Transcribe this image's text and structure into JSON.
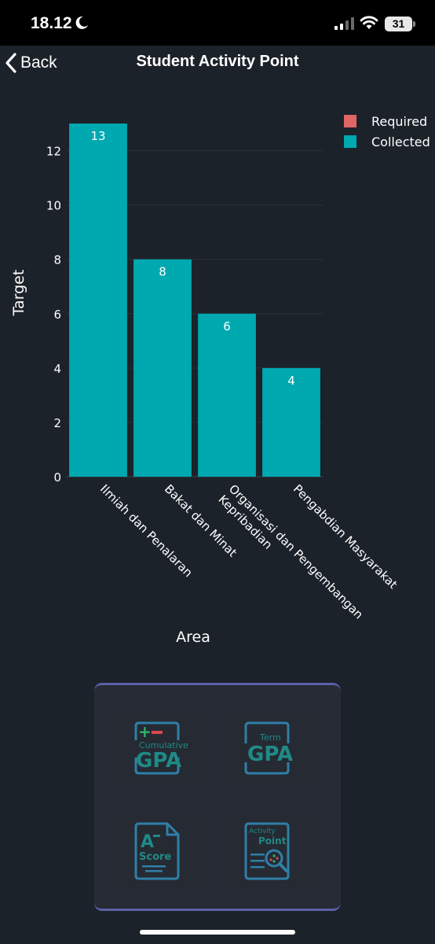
{
  "status_bar": {
    "time": "18.12",
    "battery": "31",
    "icons": [
      "moon-icon",
      "signal-icon",
      "wifi-icon",
      "battery-icon"
    ]
  },
  "nav": {
    "back_label": "Back",
    "title": "Student Activity Point"
  },
  "chart_data": {
    "type": "bar",
    "categories": [
      "Ilmiah dan Penalaran",
      "Bakat dan Minat",
      "Organisasi dan Pengembangan Kepribadian",
      "Pengabdian Masyarakat"
    ],
    "category_label_lines": [
      [
        "Ilmiah dan Penalaran"
      ],
      [
        "Bakat dan Minat"
      ],
      [
        "Organisasi dan Pengembangan",
        "Kepribadian"
      ],
      [
        "Pengabdian Masyarakat"
      ]
    ],
    "series": [
      {
        "name": "Required",
        "values": [
          0,
          0,
          0,
          0
        ],
        "color": "#e06666"
      },
      {
        "name": "Collected",
        "values": [
          13,
          8,
          6,
          4
        ],
        "color": "#00a8b0"
      }
    ],
    "data_labels": [
      "13",
      "8",
      "6",
      "4"
    ],
    "xlabel": "Area",
    "ylabel": "Target",
    "ylim": [
      0,
      13
    ],
    "yticks": [
      0,
      2,
      4,
      6,
      8,
      10,
      12
    ],
    "grid": true,
    "legend": "top-right"
  },
  "menu": {
    "items": [
      {
        "name": "cumulative-gpa",
        "top": "Cumulative",
        "main": "GPA"
      },
      {
        "name": "term-gpa",
        "top": "Term",
        "main": "GPA"
      },
      {
        "name": "a-score",
        "top": "A",
        "main": "Score"
      },
      {
        "name": "activity-point",
        "top": "Activity",
        "main": "Point"
      }
    ],
    "accent": "#2f7fa8",
    "text_color": "#1f8a86"
  }
}
